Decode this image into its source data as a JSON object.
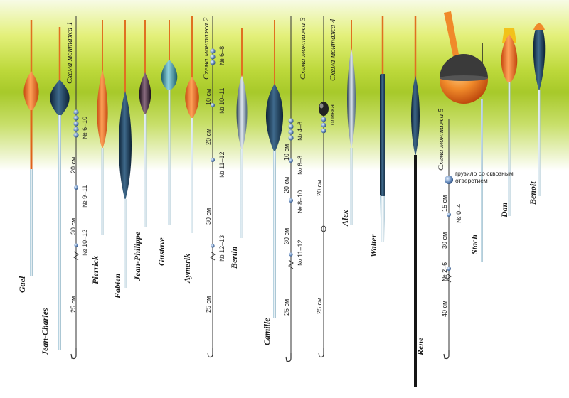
{
  "floats": {
    "gael": "Gael",
    "jean_charles": "Jean-Charles",
    "pierrick": "Pierrick",
    "fabien": "Fabien",
    "jean_philippe": "Jean-Philippe",
    "gustave": "Gustave",
    "aymerik": "Aymerik",
    "bertin": "Bertin",
    "camille": "Camille",
    "alex": "Alex",
    "walter": "Walter",
    "rene": "Rene",
    "stach": "Stach",
    "dan": "Dan",
    "benoit": "Benoit"
  },
  "rig1": {
    "title": "Схема монтажа 1",
    "shot_a": "№ 6–10",
    "len_a": "20 см",
    "shot_b": "№ 9–11",
    "len_b": "30 см",
    "shot_c": "№ 10–12",
    "len_c": "25 см"
  },
  "rig2": {
    "title": "Схема монтажа 2",
    "shot_a": "№ 6–8",
    "len_a": "10 см",
    "shot_b": "№ 10–11",
    "len_b": "20 см",
    "shot_c": "№ 11–12",
    "len_c": "30 см",
    "shot_d": "№ 12–13",
    "len_d": "25 см"
  },
  "rig3": {
    "title": "Схема монтажа 3",
    "shot_a": "№ 4–6",
    "len_a": "10 см",
    "shot_b": "№ 6–8",
    "len_b": "20 см",
    "shot_c": "№ 8–10",
    "len_c": "30 см",
    "shot_d": "№ 11–12",
    "len_d": "25 см"
  },
  "rig4": {
    "title": "Схема монтажа 4",
    "olive": "оливка",
    "len_a": "20 см",
    "len_b": "25 см"
  },
  "rig5": {
    "title": "Схема монтажа 5",
    "sinker_note": "грузило со сквозным отверстием",
    "len_a": "15 см",
    "shot_a": "№ 0–4",
    "len_b": "30 см",
    "shot_b": "№ 2–6",
    "len_c": "40 см"
  },
  "colors": {
    "orange": "#f07a2a",
    "navy": "#1c3a55",
    "teal": "#3a8fa0",
    "dark_plum": "#2e1e30",
    "light_blue": "#b8dcea"
  }
}
